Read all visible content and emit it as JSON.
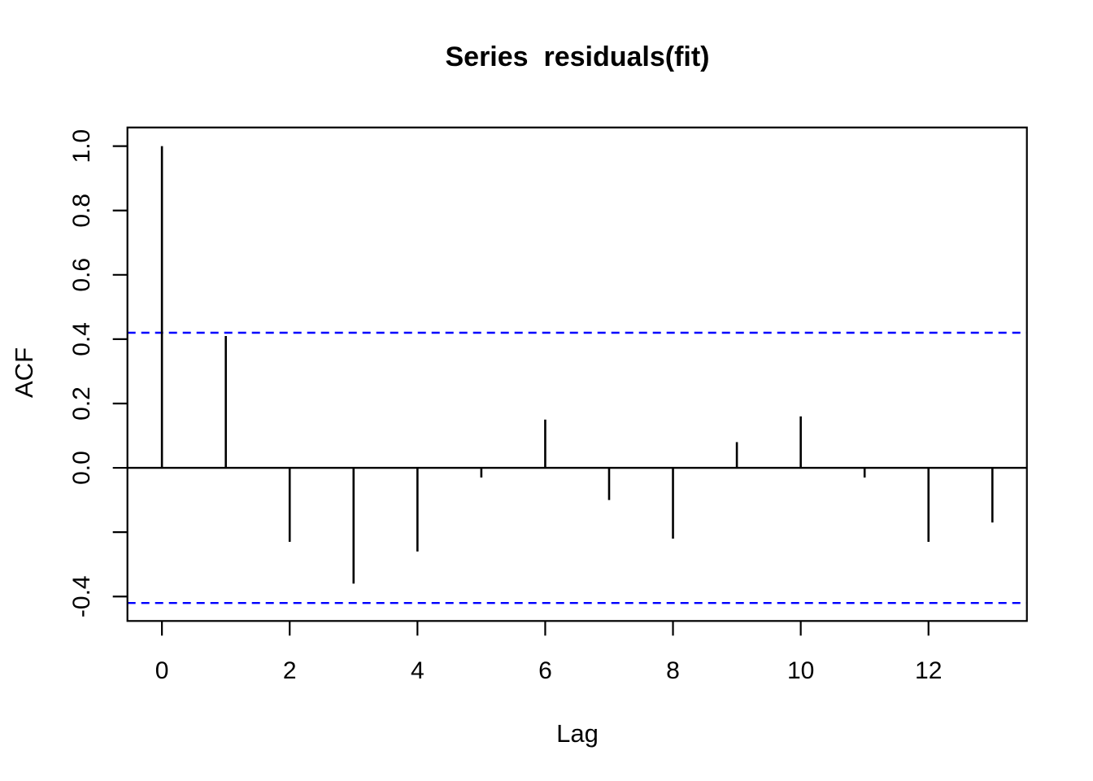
{
  "title": "Series  residuals(fit)",
  "axes": {
    "x_label": "Lag",
    "y_label": "ACF"
  },
  "colors": {
    "foreground": "#000000",
    "ci_line": "#0000ff",
    "background": "#ffffff"
  },
  "chart_data": {
    "type": "bar",
    "subtype": "acf-stem-plot",
    "title": "Series  residuals(fit)",
    "xlabel": "Lag",
    "ylabel": "ACF",
    "x": [
      0,
      1,
      2,
      3,
      4,
      5,
      6,
      7,
      8,
      9,
      10,
      11,
      12,
      13
    ],
    "values": [
      1.0,
      0.41,
      -0.23,
      -0.36,
      -0.26,
      -0.03,
      0.15,
      -0.1,
      -0.22,
      0.08,
      0.16,
      -0.03,
      -0.23,
      -0.17
    ],
    "confidence_bound": 0.42,
    "confidence_line_style": "dashed",
    "x_ticks": [
      0,
      2,
      4,
      6,
      8,
      10,
      12
    ],
    "y_tick_values": [
      1.0,
      0.8,
      0.6,
      0.4,
      0.2,
      0.0,
      -0.2,
      -0.4
    ],
    "y_tick_labels": [
      "1.0",
      "0.8",
      "0.6",
      "0.4",
      "0.2",
      "0.0",
      "",
      "-0.4"
    ],
    "xlim": [
      -0.54,
      13.54
    ],
    "ylim": [
      -0.476,
      1.058
    ],
    "grid": false,
    "legend": null
  }
}
